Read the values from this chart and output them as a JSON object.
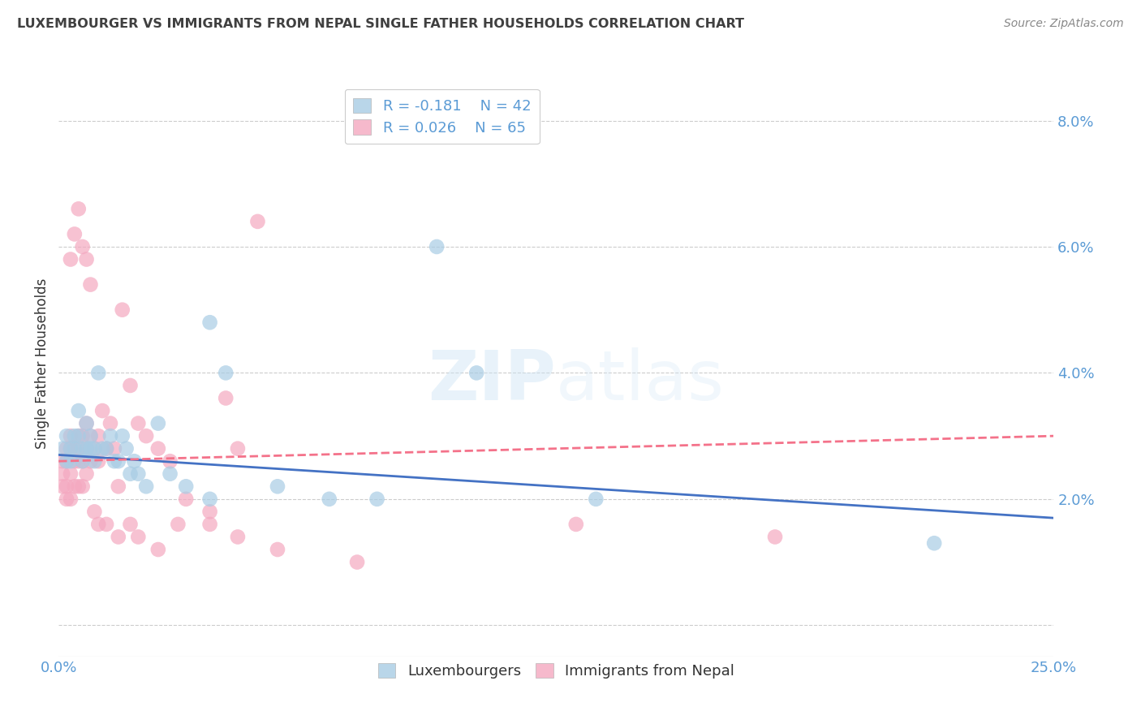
{
  "title": "LUXEMBOURGER VS IMMIGRANTS FROM NEPAL SINGLE FATHER HOUSEHOLDS CORRELATION CHART",
  "source": "Source: ZipAtlas.com",
  "ylabel": "Single Father Households",
  "right_yticks": [
    0.0,
    0.02,
    0.04,
    0.06,
    0.08
  ],
  "right_yticklabels": [
    "",
    "2.0%",
    "4.0%",
    "6.0%",
    "8.0%"
  ],
  "xlim": [
    0.0,
    0.25
  ],
  "ylim": [
    -0.005,
    0.088
  ],
  "legend_r1": "R = -0.181",
  "legend_n1": "N = 42",
  "legend_r2": "R = 0.026",
  "legend_n2": "N = 65",
  "color_blue": "#a8cce4",
  "color_pink": "#f4a8c0",
  "color_blue_line": "#4472c4",
  "color_pink_line": "#f4728a",
  "color_axis": "#5b9bd5",
  "color_grid": "#cccccc",
  "color_title": "#404040",
  "lux_x": [
    0.001,
    0.002,
    0.002,
    0.003,
    0.003,
    0.004,
    0.004,
    0.005,
    0.005,
    0.006,
    0.006,
    0.007,
    0.007,
    0.008,
    0.008,
    0.009,
    0.009,
    0.01,
    0.011,
    0.012,
    0.013,
    0.014,
    0.015,
    0.016,
    0.017,
    0.018,
    0.019,
    0.02,
    0.022,
    0.025,
    0.028,
    0.032,
    0.038,
    0.042,
    0.055,
    0.068,
    0.08,
    0.095,
    0.105,
    0.135,
    0.22,
    0.038
  ],
  "lux_y": [
    0.028,
    0.03,
    0.026,
    0.028,
    0.026,
    0.03,
    0.028,
    0.034,
    0.03,
    0.028,
    0.026,
    0.032,
    0.028,
    0.028,
    0.03,
    0.026,
    0.028,
    0.04,
    0.028,
    0.028,
    0.03,
    0.026,
    0.026,
    0.03,
    0.028,
    0.024,
    0.026,
    0.024,
    0.022,
    0.032,
    0.024,
    0.022,
    0.02,
    0.04,
    0.022,
    0.02,
    0.02,
    0.06,
    0.04,
    0.02,
    0.013,
    0.048
  ],
  "nepal_x": [
    0.001,
    0.001,
    0.001,
    0.002,
    0.002,
    0.002,
    0.002,
    0.003,
    0.003,
    0.003,
    0.003,
    0.004,
    0.004,
    0.004,
    0.005,
    0.005,
    0.005,
    0.005,
    0.006,
    0.006,
    0.006,
    0.007,
    0.007,
    0.007,
    0.008,
    0.008,
    0.009,
    0.01,
    0.01,
    0.011,
    0.012,
    0.013,
    0.014,
    0.015,
    0.016,
    0.018,
    0.02,
    0.022,
    0.025,
    0.028,
    0.032,
    0.038,
    0.042,
    0.05,
    0.003,
    0.004,
    0.005,
    0.006,
    0.007,
    0.008,
    0.009,
    0.01,
    0.012,
    0.015,
    0.018,
    0.02,
    0.025,
    0.03,
    0.038,
    0.045,
    0.055,
    0.075,
    0.13,
    0.18,
    0.045
  ],
  "nepal_y": [
    0.026,
    0.024,
    0.022,
    0.028,
    0.026,
    0.022,
    0.02,
    0.03,
    0.028,
    0.024,
    0.02,
    0.028,
    0.026,
    0.022,
    0.03,
    0.028,
    0.026,
    0.022,
    0.03,
    0.026,
    0.022,
    0.032,
    0.028,
    0.024,
    0.03,
    0.026,
    0.028,
    0.03,
    0.026,
    0.034,
    0.028,
    0.032,
    0.028,
    0.022,
    0.05,
    0.038,
    0.032,
    0.03,
    0.028,
    0.026,
    0.02,
    0.018,
    0.036,
    0.064,
    0.058,
    0.062,
    0.066,
    0.06,
    0.058,
    0.054,
    0.018,
    0.016,
    0.016,
    0.014,
    0.016,
    0.014,
    0.012,
    0.016,
    0.016,
    0.014,
    0.012,
    0.01,
    0.016,
    0.014,
    0.028
  ],
  "lux_trend_x": [
    0.0,
    0.25
  ],
  "lux_trend_y": [
    0.027,
    0.017
  ],
  "nepal_trend_x": [
    0.0,
    0.25
  ],
  "nepal_trend_y": [
    0.026,
    0.03
  ]
}
